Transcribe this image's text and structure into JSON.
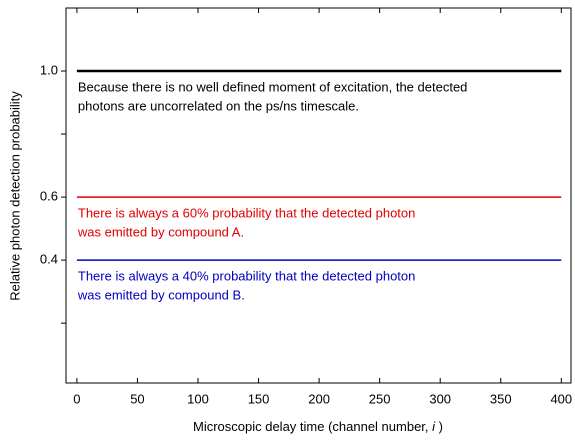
{
  "chart_data": {
    "type": "line",
    "xlabel": [
      "Microscopic delay time (channel number, ",
      "i",
      " )"
    ],
    "ylabel": "Relative photon detection probability",
    "xlim": [
      -9,
      408
    ],
    "xticks": [
      0,
      50,
      100,
      150,
      200,
      250,
      300,
      350,
      400
    ],
    "ylim": [
      0.01,
      1.2
    ],
    "yticks": [
      {
        "value": 0.4,
        "label": "0.4"
      },
      {
        "value": 0.6,
        "label": "0.6"
      },
      {
        "value": 1,
        "label": "1.0"
      }
    ],
    "yminorticks": [
      0.2,
      0.8
    ],
    "series": [
      {
        "color": "#000000",
        "x": [
          0,
          400
        ],
        "values": [
          1,
          1
        ],
        "width": 2.5,
        "annotation": [
          "Because there is no well defined moment of excitation, the detected",
          "photons are uncorrelated on the ps/ns timescale."
        ]
      },
      {
        "color": "#e00000",
        "x": [
          0,
          400
        ],
        "values": [
          0.6,
          0.6
        ],
        "width": 1.5,
        "annotation": [
          "There is always a 60% probability that the detected photon",
          "was emitted by compound A."
        ]
      },
      {
        "color": "#0000c0",
        "x": [
          0,
          400
        ],
        "values": [
          0.4,
          0.4
        ],
        "width": 1.5,
        "annotation": [
          "There is always a 40% probability that the detected photon",
          "was emitted by compound B."
        ]
      }
    ]
  }
}
